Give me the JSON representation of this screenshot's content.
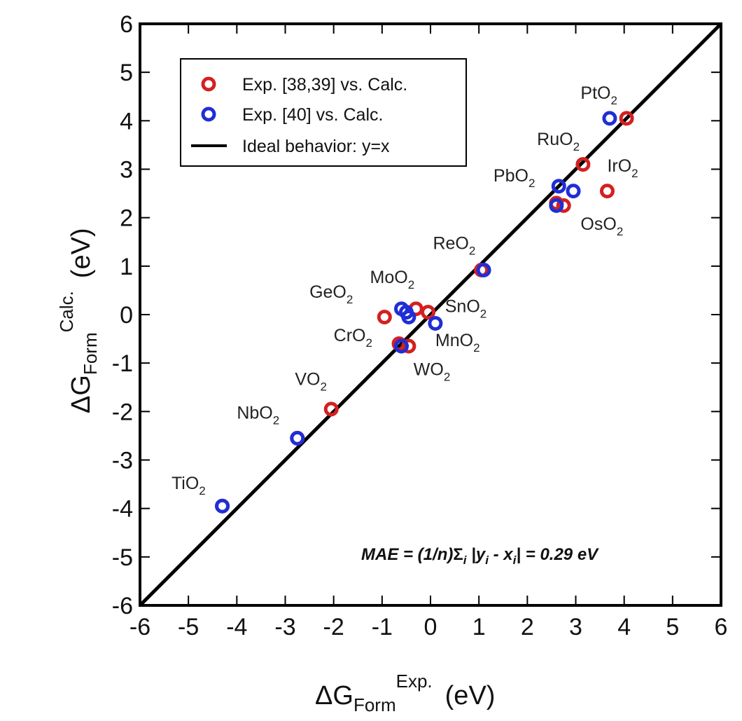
{
  "chart_data": {
    "type": "scatter",
    "xlim": [
      -6,
      6
    ],
    "ylim": [
      -6,
      6
    ],
    "x_ticks": [
      "-6",
      "-5",
      "-4",
      "-3",
      "-2",
      "-1",
      "0",
      "1",
      "2",
      "3",
      "4",
      "5",
      "6"
    ],
    "y_ticks": [
      "-6",
      "-5",
      "-4",
      "-3",
      "-2",
      "-1",
      "0",
      "1",
      "2",
      "3",
      "4",
      "5",
      "6"
    ],
    "xlabel": {
      "main": "ΔG",
      "sub": "Form",
      "sup": "Exp.",
      "unit": "(eV)"
    },
    "ylabel": {
      "main": "ΔG",
      "sub": "Form",
      "sup": "Calc.",
      "unit": "(eV)"
    },
    "legend": {
      "position": "top-left",
      "entries": [
        {
          "label": "Exp. [38,39] vs. Calc.",
          "series": "red"
        },
        {
          "label": "Exp. [40] vs. Calc.",
          "series": "blue"
        },
        {
          "label": "Ideal behavior: y=x",
          "series": "line"
        }
      ]
    },
    "annotation": {
      "prefix": "MAE = (1/n)",
      "sigma": "Σ",
      "sigma_sub": "i",
      "body1": " |y",
      "sub_y": "i",
      "body2": " - x",
      "sub_x": "i",
      "suffix": "| = 0.29 eV"
    },
    "ideal_line": {
      "from": [
        -6,
        -6
      ],
      "to": [
        6,
        6
      ]
    },
    "series": [
      {
        "name": "Exp. [38,39] vs. Calc.",
        "color": "#d42020",
        "points": [
          {
            "x": -4.3,
            "y": -3.95
          },
          {
            "x": -2.75,
            "y": -2.55
          },
          {
            "x": -2.05,
            "y": -1.95
          },
          {
            "x": -0.95,
            "y": -0.05
          },
          {
            "x": -0.65,
            "y": -0.6
          },
          {
            "x": -0.45,
            "y": -0.65
          },
          {
            "x": -0.3,
            "y": 0.12
          },
          {
            "x": -0.05,
            "y": 0.05
          },
          {
            "x": 1.05,
            "y": 0.92
          },
          {
            "x": 2.6,
            "y": 2.3
          },
          {
            "x": 2.75,
            "y": 2.25
          },
          {
            "x": 3.15,
            "y": 3.1
          },
          {
            "x": 3.65,
            "y": 2.55
          },
          {
            "x": 4.05,
            "y": 4.05
          }
        ]
      },
      {
        "name": "Exp. [40] vs. Calc.",
        "color": "#1f2ed6",
        "points": [
          {
            "x": -4.3,
            "y": -3.95
          },
          {
            "x": -2.75,
            "y": -2.55
          },
          {
            "x": -0.6,
            "y": 0.12
          },
          {
            "x": -0.5,
            "y": 0.05
          },
          {
            "x": -0.45,
            "y": -0.05
          },
          {
            "x": -0.6,
            "y": -0.65
          },
          {
            "x": 0.1,
            "y": -0.18
          },
          {
            "x": 1.1,
            "y": 0.92
          },
          {
            "x": 2.6,
            "y": 2.25
          },
          {
            "x": 2.65,
            "y": 2.65
          },
          {
            "x": 2.95,
            "y": 2.55
          },
          {
            "x": 3.7,
            "y": 4.05
          }
        ]
      }
    ],
    "point_labels": [
      {
        "base": "TiO",
        "sub": "2",
        "x": -5.35,
        "y": -3.6
      },
      {
        "base": "NbO",
        "sub": "2",
        "x": -4.0,
        "y": -2.15
      },
      {
        "base": "VO",
        "sub": "2",
        "x": -2.8,
        "y": -1.45
      },
      {
        "base": "CrO",
        "sub": "2",
        "x": -2.0,
        "y": -0.55
      },
      {
        "base": "GeO",
        "sub": "2",
        "x": -2.5,
        "y": 0.35
      },
      {
        "base": "MoO",
        "sub": "2",
        "x": -1.25,
        "y": 0.65
      },
      {
        "base": "SnO",
        "sub": "2",
        "x": 0.3,
        "y": 0.05
      },
      {
        "base": "MnO",
        "sub": "2",
        "x": 0.1,
        "y": -0.65
      },
      {
        "base": "WO",
        "sub": "2",
        "x": -0.35,
        "y": -1.25
      },
      {
        "base": "ReO",
        "sub": "2",
        "x": 0.05,
        "y": 1.35
      },
      {
        "base": "PbO",
        "sub": "2",
        "x": 1.3,
        "y": 2.75
      },
      {
        "base": "RuO",
        "sub": "2",
        "x": 2.2,
        "y": 3.5
      },
      {
        "base": "IrO",
        "sub": "2",
        "x": 3.65,
        "y": 2.95
      },
      {
        "base": "OsO",
        "sub": "2",
        "x": 3.1,
        "y": 1.75
      },
      {
        "base": "PtO",
        "sub": "2",
        "x": 3.1,
        "y": 4.45
      }
    ]
  }
}
